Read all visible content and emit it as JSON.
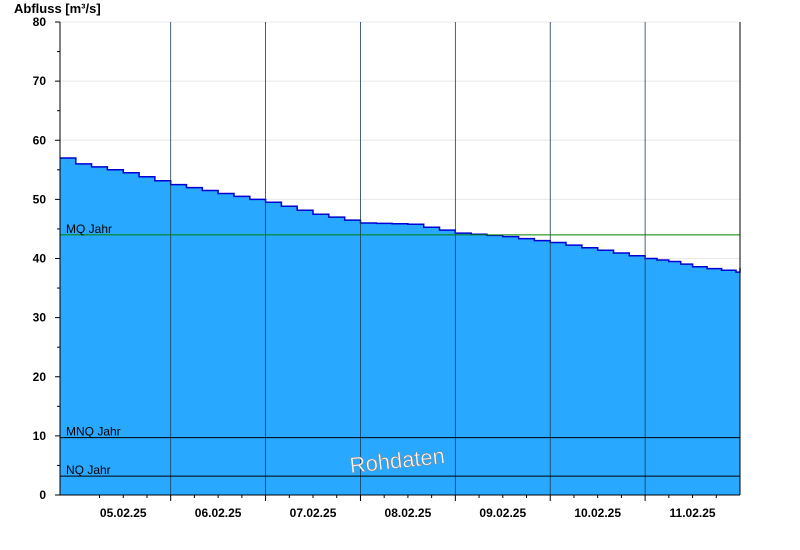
{
  "chart_data": {
    "type": "area",
    "title": "",
    "ylabel": "Abfluss [m³/s]",
    "xlabel": "",
    "ylim": [
      0,
      80
    ],
    "y_ticks": [
      0,
      10,
      20,
      30,
      40,
      50,
      60,
      70,
      80
    ],
    "x_tick_labels": [
      "05.02.25",
      "06.02.25",
      "07.02.25",
      "08.02.25",
      "09.02.25",
      "10.02.25",
      "11.02.25"
    ],
    "x": [
      "04.02.25 20:00",
      "05.02.25 00:00",
      "05.02.25 12:00",
      "06.02.25 00:00",
      "06.02.25 12:00",
      "07.02.25 00:00",
      "07.02.25 12:00",
      "08.02.25 00:00",
      "08.02.25 12:00",
      "09.02.25 00:00",
      "09.02.25 12:00",
      "10.02.25 00:00",
      "10.02.25 12:00",
      "11.02.25 00:00",
      "11.02.25 06:00",
      "11.02.25 12:00",
      "11.02.25 23:00",
      "12.02.25 00:00"
    ],
    "series": [
      {
        "values": [
          57.0,
          56.0,
          54.5,
          52.5,
          51.0,
          49.5,
          47.5,
          46.0,
          45.8,
          44.3,
          43.7,
          42.7,
          41.4,
          40.0,
          39.5,
          38.6,
          37.7,
          38.4
        ]
      }
    ],
    "reference_lines": [
      {
        "label": "MQ Jahr",
        "value": 44.0,
        "color": "#008000"
      },
      {
        "label": "MNQ Jahr",
        "value": 9.7,
        "color": "#000000"
      },
      {
        "label": "NQ Jahr",
        "value": 3.2,
        "color": "#000000"
      }
    ],
    "watermark": "Rohdaten",
    "colors": {
      "fill": "#29a8ff",
      "line": "#0000d0",
      "gridline": "#e8e8e8",
      "dayline": "#1a3a5a"
    },
    "grid": true
  }
}
